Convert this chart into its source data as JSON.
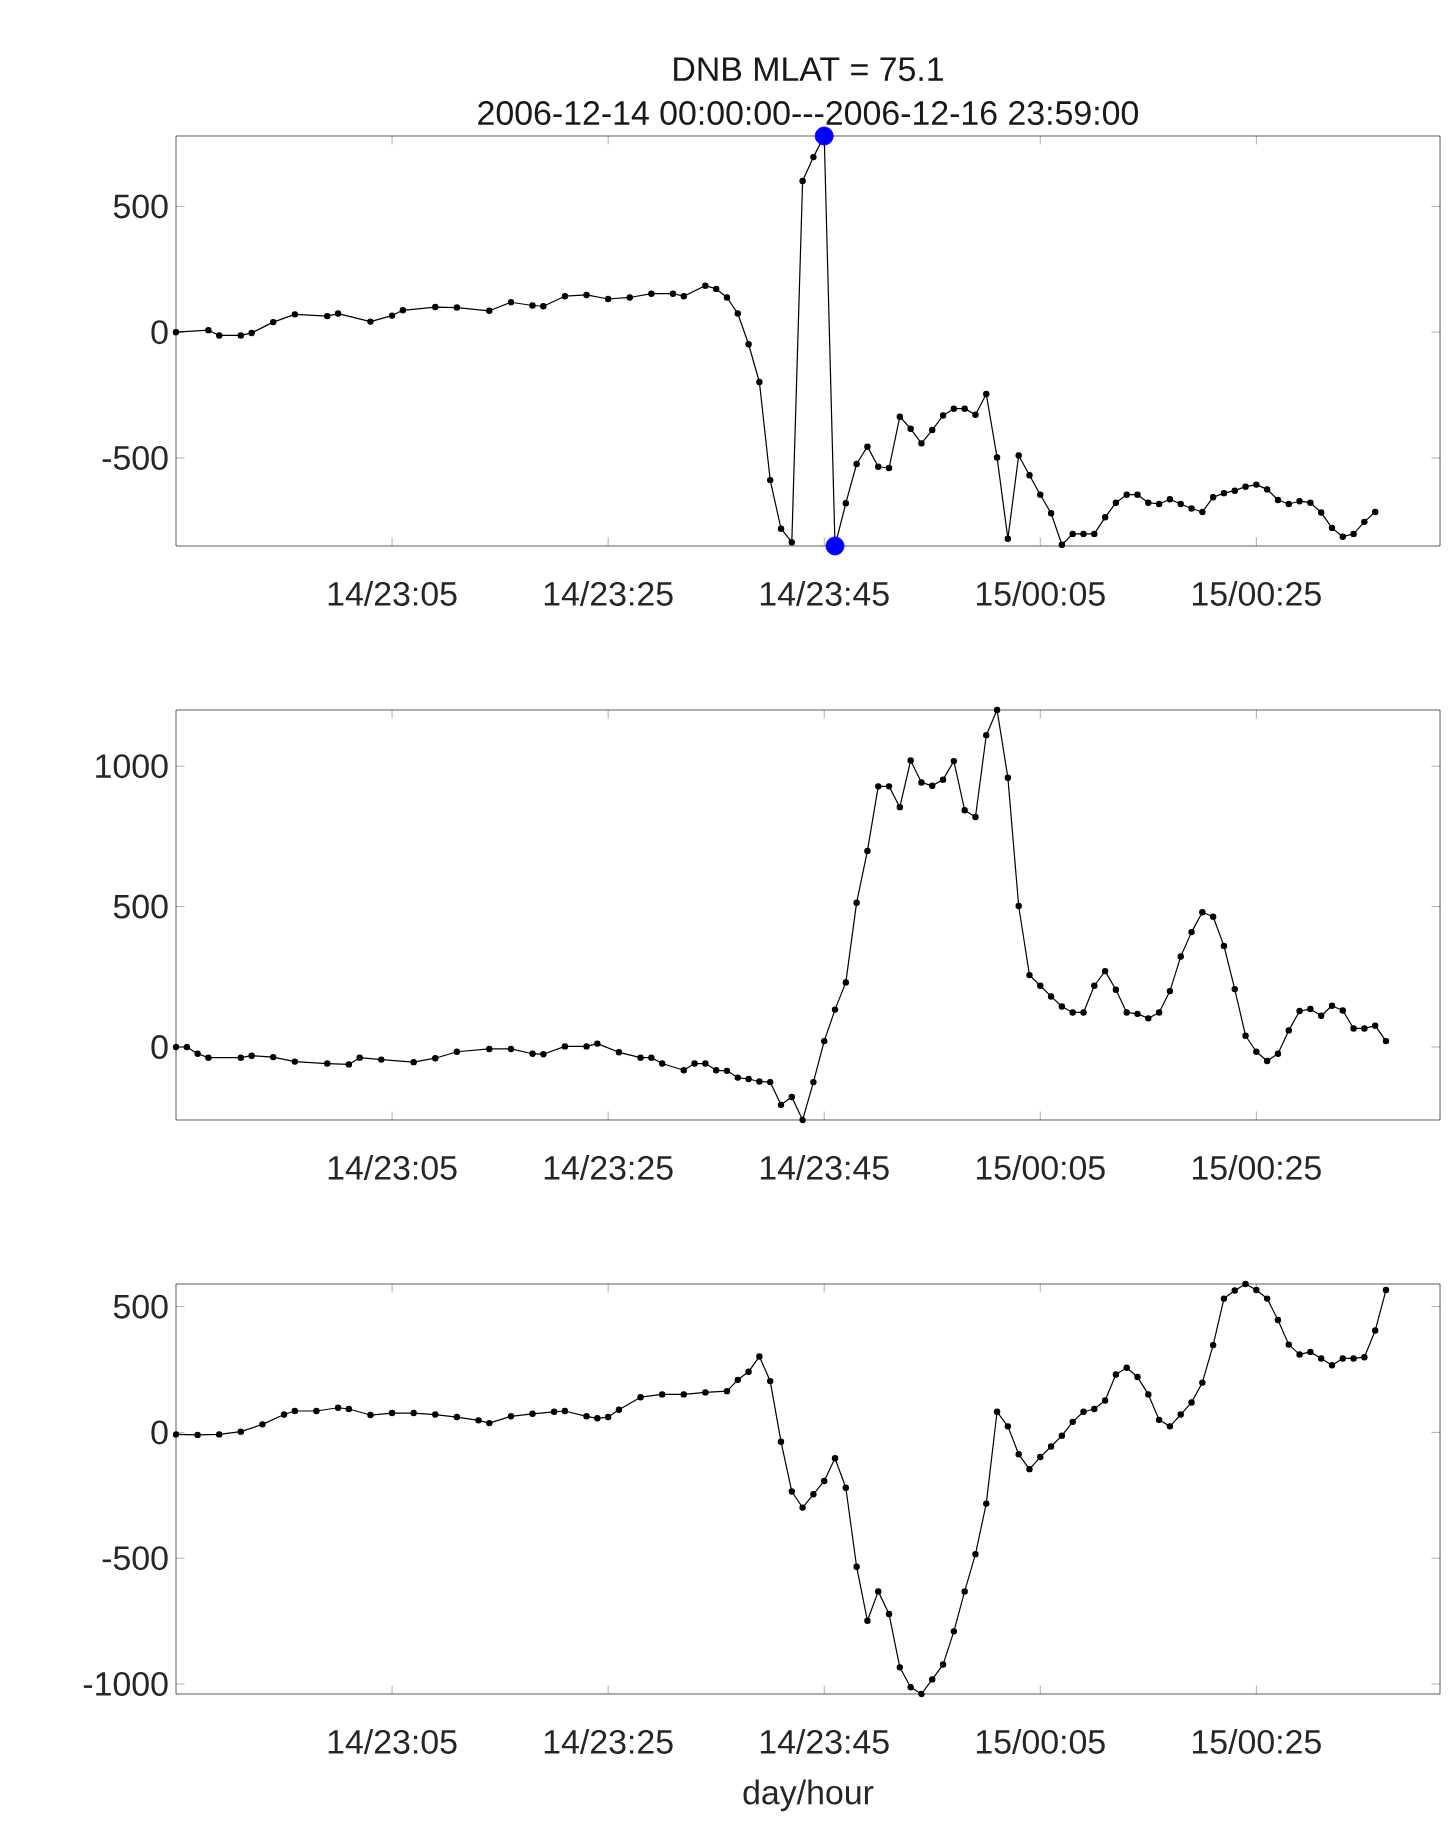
{
  "chart_data": [
    {
      "type": "line",
      "title": "DNB   MLAT = 75.1",
      "subtitle": "2006-12-14 00:00:00---2006-12-16 23:59:00",
      "marker": "circle",
      "line_style": "solid",
      "grid": false,
      "xlim": [
        "2006-12-14T22:45",
        "2006-12-15T00:42"
      ],
      "ylim": [
        -850,
        780
      ],
      "yticks": [
        -500,
        0,
        500
      ],
      "xticks": [
        {
          "value": "2006-12-14T23:05",
          "label": "14/23:05"
        },
        {
          "value": "2006-12-14T23:25",
          "label": "14/23:25"
        },
        {
          "value": "2006-12-14T23:45",
          "label": "14/23:45"
        },
        {
          "value": "2006-12-15T00:05",
          "label": "15/00:05"
        },
        {
          "value": "2006-12-15T00:25",
          "label": "15/00:25"
        }
      ],
      "series": [
        {
          "color": "#000000",
          "x": [
            "2006-12-14T22:45",
            "2006-12-14T22:48",
            "2006-12-14T22:49",
            "2006-12-14T22:51",
            "2006-12-14T22:52",
            "2006-12-14T22:54",
            "2006-12-14T22:56",
            "2006-12-14T22:59",
            "2006-12-14T23:00",
            "2006-12-14T23:03",
            "2006-12-14T23:05",
            "2006-12-14T23:06",
            "2006-12-14T23:09",
            "2006-12-14T23:11",
            "2006-12-14T23:14",
            "2006-12-14T23:16",
            "2006-12-14T23:18",
            "2006-12-14T23:19",
            "2006-12-14T23:21",
            "2006-12-14T23:23",
            "2006-12-14T23:25",
            "2006-12-14T23:27",
            "2006-12-14T23:29",
            "2006-12-14T23:31",
            "2006-12-14T23:32",
            "2006-12-14T23:34",
            "2006-12-14T23:35",
            "2006-12-14T23:36",
            "2006-12-14T23:37",
            "2006-12-14T23:38",
            "2006-12-14T23:39",
            "2006-12-14T23:40",
            "2006-12-14T23:41",
            "2006-12-14T23:42",
            "2006-12-14T23:43",
            "2006-12-14T23:44",
            "2006-12-14T23:45",
            "2006-12-14T23:46",
            "2006-12-14T23:47",
            "2006-12-14T23:48",
            "2006-12-14T23:49",
            "2006-12-14T23:50",
            "2006-12-14T23:51",
            "2006-12-14T23:52",
            "2006-12-14T23:53",
            "2006-12-14T23:54",
            "2006-12-14T23:55",
            "2006-12-14T23:56",
            "2006-12-14T23:57",
            "2006-12-14T23:58",
            "2006-12-14T23:59",
            "2006-12-15T00:00",
            "2006-12-15T00:01",
            "2006-12-15T00:02",
            "2006-12-15T00:03",
            "2006-12-15T00:04",
            "2006-12-15T00:05",
            "2006-12-15T00:06",
            "2006-12-15T00:07",
            "2006-12-15T00:08",
            "2006-12-15T00:09",
            "2006-12-15T00:10",
            "2006-12-15T00:11",
            "2006-12-15T00:12",
            "2006-12-15T00:13",
            "2006-12-15T00:14",
            "2006-12-15T00:15",
            "2006-12-15T00:16",
            "2006-12-15T00:17",
            "2006-12-15T00:18",
            "2006-12-15T00:19",
            "2006-12-15T00:20",
            "2006-12-15T00:21",
            "2006-12-15T00:22",
            "2006-12-15T00:23",
            "2006-12-15T00:24",
            "2006-12-15T00:25",
            "2006-12-15T00:26",
            "2006-12-15T00:27",
            "2006-12-15T00:28",
            "2006-12-15T00:29",
            "2006-12-15T00:30",
            "2006-12-15T00:31",
            "2006-12-15T00:32",
            "2006-12-15T00:33",
            "2006-12-15T00:34",
            "2006-12-15T00:35",
            "2006-12-15T00:36"
          ],
          "values": [
            0,
            8,
            -13,
            -13,
            -3,
            40,
            71,
            64,
            74,
            42,
            66,
            87,
            100,
            98,
            85,
            119,
            106,
            103,
            143,
            148,
            132,
            138,
            153,
            153,
            143,
            185,
            172,
            138,
            74,
            -48,
            -198,
            -588,
            -781,
            -835,
            601,
            696,
            780,
            -850,
            -680,
            -524,
            -455,
            -535,
            -540,
            -336,
            -384,
            -442,
            -389,
            -331,
            -304,
            -304,
            -328,
            -246,
            -498,
            -821,
            -490,
            -569,
            -646,
            -720,
            -845,
            -802,
            -802,
            -802,
            -736,
            -678,
            -646,
            -646,
            -678,
            -683,
            -664,
            -683,
            -701,
            -715,
            -656,
            -640,
            -630,
            -614,
            -606,
            -625,
            -667,
            -683,
            -672,
            -678,
            -717,
            -778,
            -813,
            -802,
            -754,
            -715
          ]
        },
        {
          "type": "scatter",
          "color": "#0000ff",
          "x": [
            "2006-12-14T23:45",
            "2006-12-14T23:46"
          ],
          "values": [
            780,
            -850
          ]
        }
      ]
    },
    {
      "type": "line",
      "marker": "circle",
      "line_style": "solid",
      "grid": false,
      "xlim": [
        "2006-12-14T22:45",
        "2006-12-15T00:42"
      ],
      "ylim": [
        -260,
        1200
      ],
      "yticks": [
        0,
        500,
        1000
      ],
      "xticks": [
        {
          "value": "2006-12-14T23:05",
          "label": "14/23:05"
        },
        {
          "value": "2006-12-14T23:25",
          "label": "14/23:25"
        },
        {
          "value": "2006-12-14T23:45",
          "label": "14/23:45"
        },
        {
          "value": "2006-12-15T00:05",
          "label": "15/00:05"
        },
        {
          "value": "2006-12-15T00:25",
          "label": "15/00:25"
        }
      ],
      "series": [
        {
          "color": "#000000",
          "x": [
            "2006-12-14T22:45",
            "2006-12-14T22:46",
            "2006-12-14T22:47",
            "2006-12-14T22:48",
            "2006-12-14T22:51",
            "2006-12-14T22:52",
            "2006-12-14T22:54",
            "2006-12-14T22:56",
            "2006-12-14T22:59",
            "2006-12-14T23:01",
            "2006-12-14T23:02",
            "2006-12-14T23:04",
            "2006-12-14T23:07",
            "2006-12-14T23:09",
            "2006-12-14T23:11",
            "2006-12-14T23:14",
            "2006-12-14T23:16",
            "2006-12-14T23:18",
            "2006-12-14T23:19",
            "2006-12-14T23:21",
            "2006-12-14T23:23",
            "2006-12-14T23:24",
            "2006-12-14T23:26",
            "2006-12-14T23:28",
            "2006-12-14T23:29",
            "2006-12-14T23:30",
            "2006-12-14T23:32",
            "2006-12-14T23:33",
            "2006-12-14T23:34",
            "2006-12-14T23:35",
            "2006-12-14T23:36",
            "2006-12-14T23:37",
            "2006-12-14T23:38",
            "2006-12-14T23:39",
            "2006-12-14T23:40",
            "2006-12-14T23:41",
            "2006-12-14T23:42",
            "2006-12-14T23:43",
            "2006-12-14T23:44",
            "2006-12-14T23:45",
            "2006-12-14T23:46",
            "2006-12-14T23:47",
            "2006-12-14T23:48",
            "2006-12-14T23:49",
            "2006-12-14T23:50",
            "2006-12-14T23:51",
            "2006-12-14T23:52",
            "2006-12-14T23:53",
            "2006-12-14T23:54",
            "2006-12-14T23:55",
            "2006-12-14T23:56",
            "2006-12-14T23:57",
            "2006-12-14T23:58",
            "2006-12-14T23:59",
            "2006-12-15T00:00",
            "2006-12-15T00:01",
            "2006-12-15T00:02",
            "2006-12-15T00:03",
            "2006-12-15T00:04",
            "2006-12-15T00:05",
            "2006-12-15T00:06",
            "2006-12-15T00:07",
            "2006-12-15T00:08",
            "2006-12-15T00:09",
            "2006-12-15T00:10",
            "2006-12-15T00:11",
            "2006-12-15T00:12",
            "2006-12-15T00:13",
            "2006-12-15T00:14",
            "2006-12-15T00:15",
            "2006-12-15T00:16",
            "2006-12-15T00:17",
            "2006-12-15T00:18",
            "2006-12-15T00:19",
            "2006-12-15T00:20",
            "2006-12-15T00:21",
            "2006-12-15T00:22",
            "2006-12-15T00:23",
            "2006-12-15T00:24",
            "2006-12-15T00:25",
            "2006-12-15T00:26",
            "2006-12-15T00:27",
            "2006-12-15T00:28",
            "2006-12-15T00:29",
            "2006-12-15T00:30",
            "2006-12-15T00:31",
            "2006-12-15T00:32",
            "2006-12-15T00:33",
            "2006-12-15T00:34",
            "2006-12-15T00:35",
            "2006-12-15T00:36",
            "2006-12-15T00:37"
          ],
          "values": [
            0,
            0,
            -24,
            -38,
            -38,
            -31,
            -36,
            -52,
            -59,
            -62,
            -38,
            -45,
            -54,
            -40,
            -17,
            -7,
            -7,
            -24,
            -26,
            2,
            2,
            12,
            -19,
            -38,
            -38,
            -59,
            -83,
            -59,
            -59,
            -83,
            -85,
            -109,
            -114,
            -123,
            -125,
            -206,
            -178,
            -260,
            -125,
            21,
            133,
            230,
            514,
            698,
            928,
            928,
            854,
            1020,
            942,
            930,
            952,
            1018,
            843,
            819,
            1110,
            1200,
            959,
            502,
            256,
            218,
            180,
            144,
            123,
            123,
            218,
            270,
            204,
            123,
            118,
            102,
            123,
            199,
            322,
            409,
            480,
            464,
            360,
            206,
            40,
            -17,
            -50,
            -24,
            59,
            128,
            135,
            111,
            147,
            130,
            66,
            66,
            76,
            21
          ]
        }
      ]
    },
    {
      "type": "line",
      "xlabel": "day/hour",
      "marker": "circle",
      "line_style": "solid",
      "grid": false,
      "xlim": [
        "2006-12-14T22:45",
        "2006-12-15T00:42"
      ],
      "ylim": [
        -1040,
        590
      ],
      "yticks": [
        -1000,
        -500,
        0,
        500
      ],
      "xticks": [
        {
          "value": "2006-12-14T23:05",
          "label": "14/23:05"
        },
        {
          "value": "2006-12-14T23:25",
          "label": "14/23:25"
        },
        {
          "value": "2006-12-14T23:45",
          "label": "14/23:45"
        },
        {
          "value": "2006-12-15T00:05",
          "label": "15/00:05"
        },
        {
          "value": "2006-12-15T00:25",
          "label": "15/00:25"
        }
      ],
      "series": [
        {
          "color": "#000000",
          "x": [
            "2006-12-14T22:45",
            "2006-12-14T22:47",
            "2006-12-14T22:49",
            "2006-12-14T22:51",
            "2006-12-14T22:53",
            "2006-12-14T22:55",
            "2006-12-14T22:56",
            "2006-12-14T22:58",
            "2006-12-14T23:00",
            "2006-12-14T23:01",
            "2006-12-14T23:03",
            "2006-12-14T23:05",
            "2006-12-14T23:07",
            "2006-12-14T23:09",
            "2006-12-14T23:11",
            "2006-12-14T23:13",
            "2006-12-14T23:14",
            "2006-12-14T23:16",
            "2006-12-14T23:18",
            "2006-12-14T23:20",
            "2006-12-14T23:21",
            "2006-12-14T23:23",
            "2006-12-14T23:24",
            "2006-12-14T23:25",
            "2006-12-14T23:26",
            "2006-12-14T23:28",
            "2006-12-14T23:30",
            "2006-12-14T23:32",
            "2006-12-14T23:34",
            "2006-12-14T23:36",
            "2006-12-14T23:37",
            "2006-12-14T23:38",
            "2006-12-14T23:39",
            "2006-12-14T23:40",
            "2006-12-14T23:41",
            "2006-12-14T23:42",
            "2006-12-14T23:43",
            "2006-12-14T23:44",
            "2006-12-14T23:45",
            "2006-12-14T23:46",
            "2006-12-14T23:47",
            "2006-12-14T23:48",
            "2006-12-14T23:49",
            "2006-12-14T23:50",
            "2006-12-14T23:51",
            "2006-12-14T23:52",
            "2006-12-14T23:53",
            "2006-12-14T23:54",
            "2006-12-14T23:55",
            "2006-12-14T23:56",
            "2006-12-14T23:57",
            "2006-12-14T23:58",
            "2006-12-14T23:59",
            "2006-12-15T00:00",
            "2006-12-15T00:01",
            "2006-12-15T00:02",
            "2006-12-15T00:03",
            "2006-12-15T00:04",
            "2006-12-15T00:05",
            "2006-12-15T00:06",
            "2006-12-15T00:07",
            "2006-12-15T00:08",
            "2006-12-15T00:09",
            "2006-12-15T00:10",
            "2006-12-15T00:11",
            "2006-12-15T00:12",
            "2006-12-15T00:13",
            "2006-12-15T00:14",
            "2006-12-15T00:15",
            "2006-12-15T00:16",
            "2006-12-15T00:17",
            "2006-12-15T00:18",
            "2006-12-15T00:19",
            "2006-12-15T00:20",
            "2006-12-15T00:21",
            "2006-12-15T00:22",
            "2006-12-15T00:23",
            "2006-12-15T00:24",
            "2006-12-15T00:25",
            "2006-12-15T00:26",
            "2006-12-15T00:27",
            "2006-12-15T00:28",
            "2006-12-15T00:29",
            "2006-12-15T00:30",
            "2006-12-15T00:31",
            "2006-12-15T00:32",
            "2006-12-15T00:33",
            "2006-12-15T00:34",
            "2006-12-15T00:35",
            "2006-12-15T00:36",
            "2006-12-15T00:37"
          ],
          "values": [
            -8,
            -10,
            -8,
            3,
            32,
            71,
            85,
            85,
            98,
            93,
            69,
            77,
            77,
            71,
            61,
            48,
            37,
            64,
            74,
            82,
            85,
            64,
            56,
            61,
            90,
            140,
            151,
            151,
            159,
            164,
            209,
            241,
            302,
            204,
            -37,
            -235,
            -299,
            -246,
            -193,
            -103,
            -220,
            -534,
            -749,
            -632,
            -722,
            -934,
            -1013,
            -1040,
            -982,
            -923,
            -791,
            -632,
            -484,
            -283,
            82,
            24,
            -87,
            -146,
            -98,
            -56,
            -13,
            42,
            82,
            93,
            127,
            230,
            257,
            220,
            151,
            50,
            24,
            71,
            119,
            198,
            347,
            532,
            564,
            590,
            566,
            532,
            447,
            349,
            310,
            320,
            294,
            267,
            294,
            294,
            299,
            405,
            566
          ]
        }
      ]
    }
  ]
}
